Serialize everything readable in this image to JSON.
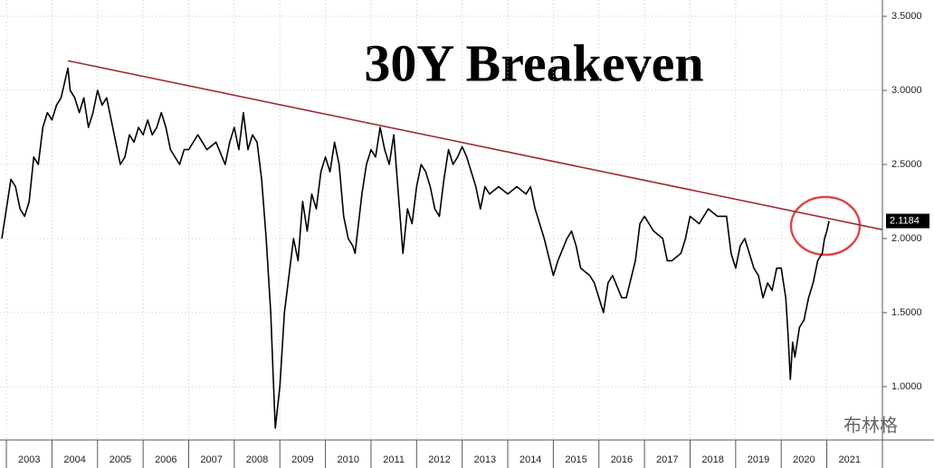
{
  "chart_data": {
    "type": "line",
    "title": "30Y Breakeven",
    "color": "#000000",
    "x": [
      2002.9,
      2003.0,
      2003.1,
      2003.2,
      2003.3,
      2003.4,
      2003.5,
      2003.6,
      2003.7,
      2003.8,
      2003.9,
      2004.0,
      2004.1,
      2004.2,
      2004.35,
      2004.4,
      2004.5,
      2004.6,
      2004.7,
      2004.8,
      2004.9,
      2005.0,
      2005.1,
      2005.2,
      2005.3,
      2005.4,
      2005.5,
      2005.6,
      2005.7,
      2005.8,
      2005.9,
      2006.0,
      2006.1,
      2006.2,
      2006.3,
      2006.4,
      2006.5,
      2006.6,
      2006.7,
      2006.8,
      2006.9,
      2007.0,
      2007.2,
      2007.4,
      2007.6,
      2007.8,
      2007.9,
      2008.0,
      2008.1,
      2008.2,
      2008.3,
      2008.4,
      2008.5,
      2008.6,
      2008.7,
      2008.8,
      2008.85,
      2008.9,
      2009.0,
      2009.1,
      2009.2,
      2009.3,
      2009.4,
      2009.5,
      2009.6,
      2009.7,
      2009.8,
      2009.9,
      2010.0,
      2010.1,
      2010.2,
      2010.3,
      2010.4,
      2010.5,
      2010.6,
      2010.65,
      2010.8,
      2010.9,
      2011.0,
      2011.1,
      2011.2,
      2011.3,
      2011.4,
      2011.5,
      2011.6,
      2011.7,
      2011.8,
      2011.9,
      2012.0,
      2012.1,
      2012.2,
      2012.3,
      2012.4,
      2012.5,
      2012.6,
      2012.7,
      2012.8,
      2012.9,
      2013.0,
      2013.1,
      2013.2,
      2013.3,
      2013.4,
      2013.5,
      2013.6,
      2013.8,
      2014.0,
      2014.2,
      2014.4,
      2014.5,
      2014.6,
      2014.8,
      2015.0,
      2015.1,
      2015.3,
      2015.4,
      2015.5,
      2015.6,
      2015.8,
      2015.9,
      2016.0,
      2016.1,
      2016.2,
      2016.3,
      2016.5,
      2016.6,
      2016.8,
      2016.9,
      2017.0,
      2017.2,
      2017.4,
      2017.5,
      2017.6,
      2017.8,
      2017.9,
      2018.0,
      2018.2,
      2018.4,
      2018.6,
      2018.8,
      2018.9,
      2019.0,
      2019.1,
      2019.2,
      2019.4,
      2019.5,
      2019.6,
      2019.7,
      2019.8,
      2019.9,
      2020.0,
      2020.1,
      2020.15,
      2020.2,
      2020.25,
      2020.3,
      2020.4,
      2020.5,
      2020.6,
      2020.7,
      2020.8,
      2020.9,
      2020.95,
      2021.0,
      2021.05
    ],
    "values": [
      2.0,
      2.2,
      2.4,
      2.35,
      2.2,
      2.15,
      2.25,
      2.55,
      2.5,
      2.75,
      2.85,
      2.8,
      2.9,
      2.95,
      3.15,
      3.0,
      2.95,
      2.85,
      2.95,
      2.75,
      2.85,
      3.0,
      2.9,
      2.95,
      2.8,
      2.65,
      2.5,
      2.55,
      2.7,
      2.65,
      2.75,
      2.7,
      2.8,
      2.7,
      2.75,
      2.85,
      2.75,
      2.6,
      2.55,
      2.5,
      2.6,
      2.6,
      2.7,
      2.6,
      2.65,
      2.5,
      2.65,
      2.75,
      2.6,
      2.85,
      2.6,
      2.7,
      2.65,
      2.4,
      2.0,
      1.5,
      1.1,
      0.72,
      1.0,
      1.5,
      1.75,
      2.0,
      1.85,
      2.25,
      2.05,
      2.3,
      2.2,
      2.45,
      2.55,
      2.45,
      2.65,
      2.5,
      2.15,
      2.0,
      1.95,
      1.9,
      2.3,
      2.5,
      2.6,
      2.55,
      2.75,
      2.6,
      2.5,
      2.7,
      2.3,
      1.9,
      2.2,
      2.1,
      2.35,
      2.5,
      2.45,
      2.35,
      2.2,
      2.15,
      2.4,
      2.6,
      2.5,
      2.55,
      2.62,
      2.55,
      2.45,
      2.35,
      2.2,
      2.35,
      2.3,
      2.35,
      2.3,
      2.35,
      2.3,
      2.35,
      2.2,
      2.0,
      1.75,
      1.85,
      2.0,
      2.05,
      1.95,
      1.8,
      1.75,
      1.7,
      1.6,
      1.5,
      1.7,
      1.75,
      1.6,
      1.6,
      1.85,
      2.1,
      2.15,
      2.05,
      2.0,
      1.85,
      1.85,
      1.9,
      2.0,
      2.15,
      2.1,
      2.2,
      2.15,
      2.15,
      1.9,
      1.8,
      1.95,
      2.0,
      1.8,
      1.75,
      1.6,
      1.7,
      1.65,
      1.8,
      1.8,
      1.6,
      1.35,
      1.05,
      1.3,
      1.2,
      1.4,
      1.45,
      1.6,
      1.7,
      1.85,
      1.9,
      2.0,
      2.05,
      2.1184
    ],
    "xlim": [
      2002.86,
      2022.22
    ],
    "xticks": [
      2003,
      2004,
      2005,
      2006,
      2007,
      2008,
      2009,
      2010,
      2011,
      2012,
      2013,
      2014,
      2015,
      2016,
      2017,
      2018,
      2019,
      2020,
      2021
    ],
    "ylim": [
      0.64,
      3.61
    ],
    "yticks": [
      {
        "value": 1.0,
        "label": "1.0000"
      },
      {
        "value": 1.5,
        "label": "1.5000"
      },
      {
        "value": 2.0,
        "label": "2.0000"
      },
      {
        "value": 2.5,
        "label": "2.5000"
      },
      {
        "value": 3.0,
        "label": "3.0000"
      },
      {
        "value": 3.5,
        "label": "3.5000"
      }
    ],
    "grid": true,
    "trend_line": {
      "x": [
        2004.35,
        2022.22
      ],
      "values": [
        3.2,
        2.06
      ],
      "color": "#9e2b35"
    },
    "watermark": "布林格"
  }
}
